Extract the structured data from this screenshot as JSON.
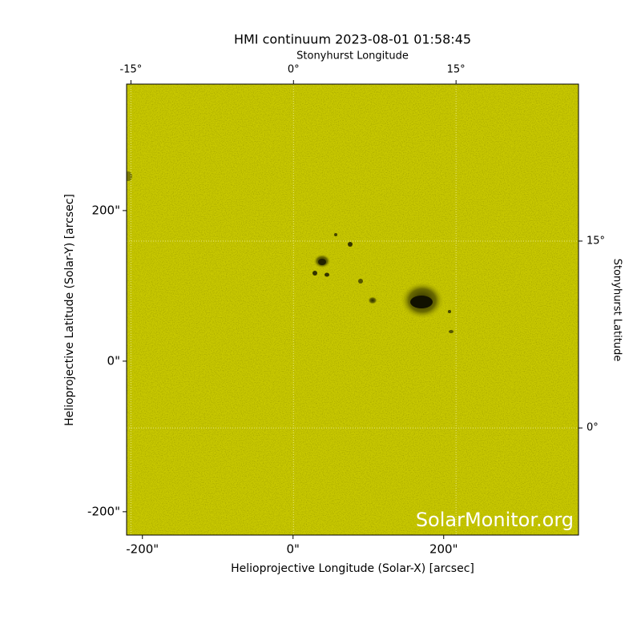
{
  "chart_data": {
    "type": "image",
    "title": "HMI continuum 2023-08-01 01:58:45",
    "xlabel": "Helioprojective Longitude (Solar-X) [arcsec]",
    "ylabel": "Helioprojective Latitude (Solar-Y) [arcsec]",
    "x2label": "Stonyhurst Longitude",
    "y2label": "Stonyhurst Latitude",
    "watermark": "SolarMonitor.org",
    "color": "#c8c800",
    "grid": true,
    "xlim": [
      -221,
      379
    ],
    "ylim": [
      -231,
      368
    ],
    "xticks": [
      {
        "value": -200,
        "label": "-200\""
      },
      {
        "value": 0,
        "label": "0\""
      },
      {
        "value": 200,
        "label": "200\""
      }
    ],
    "yticks": [
      {
        "value": -200,
        "label": "-200\""
      },
      {
        "value": 0,
        "label": "0\""
      },
      {
        "value": 200,
        "label": "200\""
      }
    ],
    "x2lim": [
      -15.4,
      26.3
    ],
    "x2ticks": [
      {
        "value": -15,
        "label": "-15°"
      },
      {
        "value": 0,
        "label": "0°"
      },
      {
        "value": 15,
        "label": "15°"
      }
    ],
    "y2lim": [
      -8.6,
      27.6
    ],
    "y2ticks": [
      {
        "value": 0,
        "label": "0°"
      },
      {
        "value": 15,
        "label": "15°"
      }
    ]
  }
}
